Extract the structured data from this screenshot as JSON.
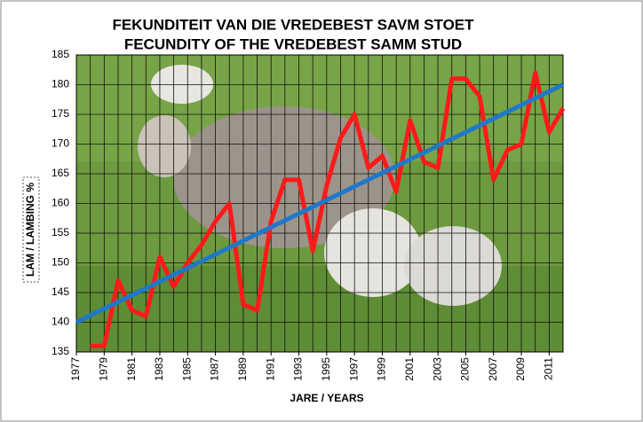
{
  "chart_data": {
    "type": "line",
    "title": "FEKUNDITEIT VAN DIE VREDEBEST SAVM STOET",
    "subtitle": "FECUNDITY OF THE VREDEBEST SAMM STUD",
    "x_label": "JARE / YEARS",
    "y_label": "LAM / LAMBING %",
    "xlim": [
      1977,
      2012
    ],
    "xticks": [
      1977,
      1979,
      1981,
      1983,
      1985,
      1987,
      1989,
      1991,
      1993,
      1995,
      1997,
      1999,
      2001,
      2003,
      2005,
      2007,
      2009,
      2011
    ],
    "x_grid_step": 1,
    "ylim": [
      135,
      185
    ],
    "yticks": [
      135,
      140,
      145,
      150,
      155,
      160,
      165,
      170,
      175,
      180,
      185
    ],
    "grid": true,
    "series": [
      {
        "color": "#ff1a1a",
        "x": [
          1978,
          1979,
          1980,
          1981,
          1982,
          1983,
          1984,
          1985,
          1986,
          1987,
          1988,
          1989,
          1990,
          1991,
          1992,
          1993,
          1994,
          1995,
          1996,
          1997,
          1998,
          1999,
          2000,
          2001,
          2002,
          2003,
          2004,
          2005,
          2006,
          2007,
          2008,
          2009,
          2010,
          2011,
          2012
        ],
        "values": [
          136,
          136,
          147,
          142,
          141,
          151,
          146,
          150,
          153,
          157,
          160,
          143,
          142,
          157,
          164,
          164,
          152,
          163,
          171,
          175,
          166,
          168,
          162,
          174,
          167,
          166,
          181,
          181,
          178,
          164,
          169,
          170,
          182,
          172,
          176
        ]
      },
      {
        "color": "#1f78c8",
        "x": [
          1977,
          2012
        ],
        "values": [
          140,
          180
        ]
      }
    ]
  }
}
